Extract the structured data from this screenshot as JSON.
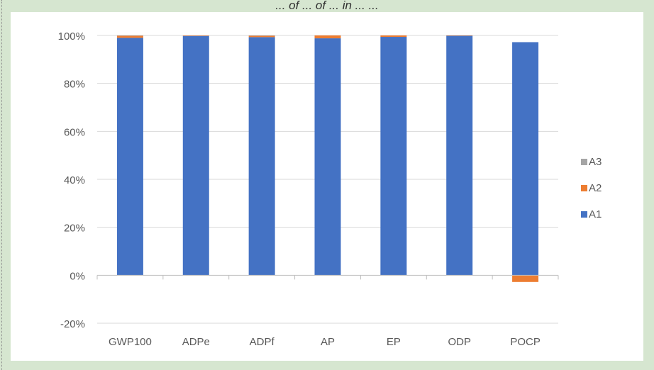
{
  "caption": "... of ... of ... in ... ...",
  "chart_data": {
    "type": "bar",
    "stacked": true,
    "categories": [
      "GWP100",
      "ADPe",
      "ADPf",
      "AP",
      "EP",
      "ODP",
      "POCP"
    ],
    "series": [
      {
        "name": "A1",
        "color": "#4472C4",
        "values": [
          99.0,
          99.8,
          99.3,
          98.8,
          99.4,
          99.9,
          97.2
        ]
      },
      {
        "name": "A2",
        "color": "#ED7D31",
        "values": [
          0.9,
          0.2,
          0.6,
          1.2,
          0.6,
          0.1,
          -2.8
        ]
      },
      {
        "name": "A3",
        "color": "#A5A5A5",
        "values": [
          0.1,
          0.0,
          0.1,
          0.0,
          0.0,
          0.0,
          0.0
        ]
      }
    ],
    "title": "",
    "xlabel": "",
    "ylabel": "",
    "ylim": [
      -20,
      100
    ],
    "yticks": [
      "-20%",
      "0%",
      "20%",
      "40%",
      "60%",
      "80%",
      "100%"
    ],
    "grid": true,
    "legend_position": "right"
  }
}
